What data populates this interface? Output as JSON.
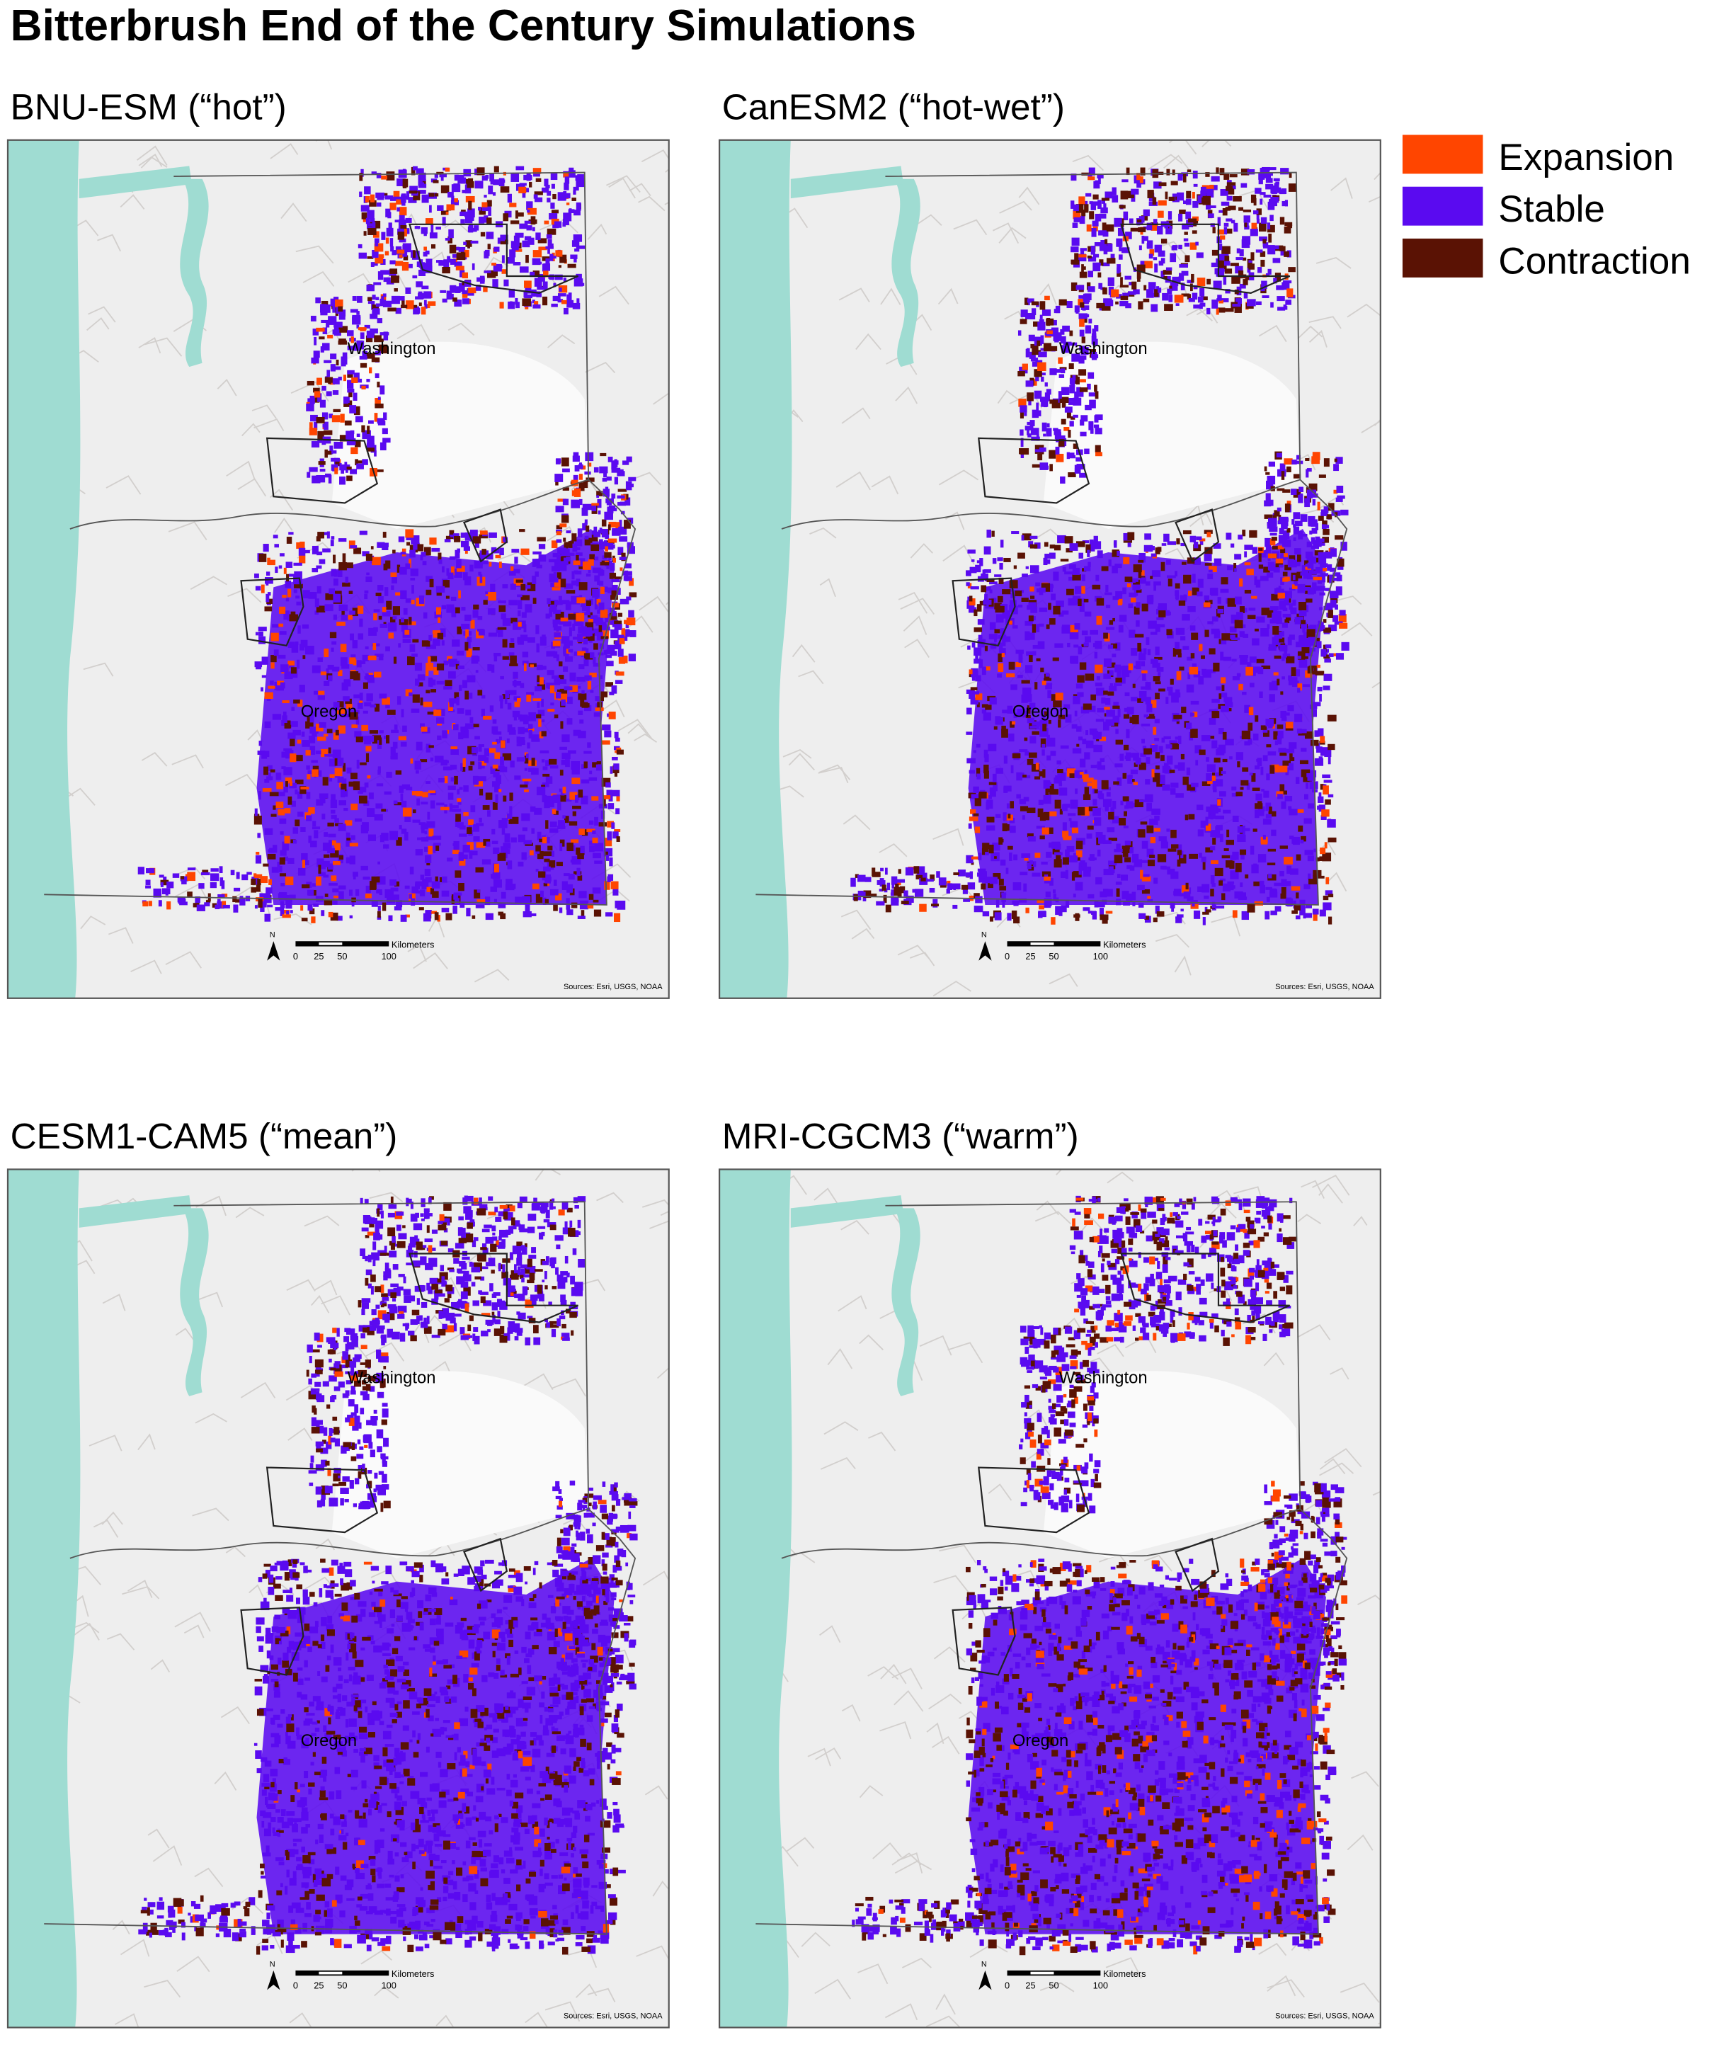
{
  "title": "Bitterbrush End of the Century Simulations",
  "legend": [
    {
      "label": "Expansion",
      "color": "#ff4500"
    },
    {
      "label": "Stable",
      "color": "#5a0af0"
    },
    {
      "label": "Contraction",
      "color": "#5a1204"
    }
  ],
  "panels": [
    {
      "title": "BNU-ESM (“hot”)",
      "map_labels": [
        "Washington",
        "Oregon"
      ],
      "north": "N",
      "scale_bar": {
        "unit": "Kilometers",
        "ticks": [
          0,
          25,
          50,
          100
        ]
      },
      "source": "Sources: Esri, USGS, NOAA"
    },
    {
      "title": "CanESM2 (“hot-wet”)",
      "map_labels": [
        "Washington",
        "Oregon"
      ],
      "north": "N",
      "scale_bar": {
        "unit": "Kilometers",
        "ticks": [
          0,
          25,
          50,
          100
        ]
      },
      "source": "Sources: Esri, USGS, NOAA"
    },
    {
      "title": "CESM1-CAM5 (“mean”)",
      "map_labels": [
        "Washington",
        "Oregon"
      ],
      "north": "N",
      "scale_bar": {
        "unit": "Kilometers",
        "ticks": [
          0,
          25,
          50,
          100
        ]
      },
      "source": "Sources: Esri, USGS, NOAA"
    },
    {
      "title": "MRI-CGCM3 (“warm”)",
      "map_labels": [
        "Washington",
        "Oregon"
      ],
      "north": "N",
      "scale_bar": {
        "unit": "Kilometers",
        "ticks": [
          0,
          25,
          50,
          100
        ]
      },
      "source": "Sources: Esri, USGS, NOAA"
    }
  ]
}
